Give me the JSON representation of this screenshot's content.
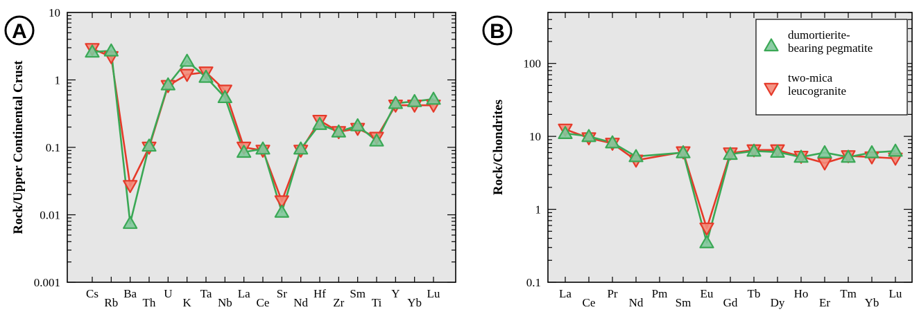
{
  "chart_data": [
    {
      "type": "line",
      "panel_label": "A",
      "ylabel": "Rock/Upper Continental Crust",
      "yscale": "log",
      "ylim": [
        0.001,
        10
      ],
      "yticks": [
        "0.001",
        "0.01",
        "0.1",
        "1",
        "10"
      ],
      "categories": [
        "Cs",
        "Rb",
        "Ba",
        "Th",
        "U",
        "K",
        "Ta",
        "Nb",
        "La",
        "Ce",
        "Sr",
        "Nd",
        "Hf",
        "Zr",
        "Sm",
        "Ti",
        "Y",
        "Yb",
        "Lu"
      ],
      "grid": false,
      "series": [
        {
          "name": "dumortierite-bearing pegmatite",
          "color": "#3aa855",
          "fill": "#7fc79a",
          "marker": "triangle-up",
          "values": [
            2.6,
            2.7,
            0.0075,
            0.105,
            0.85,
            1.9,
            1.1,
            0.55,
            0.085,
            0.095,
            0.011,
            0.095,
            0.22,
            0.17,
            0.21,
            0.125,
            0.45,
            0.48,
            0.52
          ]
        },
        {
          "name": "two-mica leucogranite",
          "color": "#e53a2a",
          "fill": "#f38a78",
          "marker": "triangle-down",
          "values": [
            2.9,
            2.2,
            0.027,
            0.1,
            0.82,
            1.2,
            1.3,
            0.7,
            0.1,
            0.09,
            0.016,
            0.09,
            0.25,
            0.17,
            0.19,
            0.14,
            0.42,
            0.42,
            0.42
          ]
        }
      ]
    },
    {
      "type": "line",
      "panel_label": "B",
      "ylabel": "Rock/Chondrites",
      "yscale": "log",
      "ylim": [
        0.1,
        500
      ],
      "yticks": [
        "0.1",
        "1",
        "10",
        "100"
      ],
      "categories": [
        "La",
        "Ce",
        "Pr",
        "Nd",
        "Pm",
        "Sm",
        "Eu",
        "Gd",
        "Tb",
        "Dy",
        "Ho",
        "Er",
        "Tm",
        "Yb",
        "Lu"
      ],
      "grid": false,
      "legend": "top-right",
      "series": [
        {
          "name": "dumortierite-bearing pegmatite",
          "color": "#3aa855",
          "fill": "#7fc79a",
          "marker": "triangle-up",
          "values": [
            11,
            10,
            8.2,
            5.3,
            null,
            6.0,
            0.35,
            5.7,
            6.3,
            6.1,
            5.2,
            6.0,
            5.2,
            6.0,
            6.3
          ]
        },
        {
          "name": "two-mica leucogranite",
          "color": "#e53a2a",
          "fill": "#f38a78",
          "marker": "triangle-down",
          "values": [
            12.5,
            9.5,
            8.0,
            4.7,
            null,
            6.1,
            0.55,
            5.9,
            6.5,
            6.5,
            5.3,
            4.3,
            5.4,
            5.2,
            5.0
          ]
        }
      ],
      "legend_entries": [
        {
          "lines": [
            "dumortierite-",
            "bearing pegmatite"
          ],
          "marker": "triangle-up",
          "color": "#3aa855",
          "fill": "#7fc79a"
        },
        {
          "lines": [
            "two-mica",
            "leucogranite"
          ],
          "marker": "triangle-down",
          "color": "#e53a2a",
          "fill": "#f38a78"
        }
      ]
    }
  ]
}
